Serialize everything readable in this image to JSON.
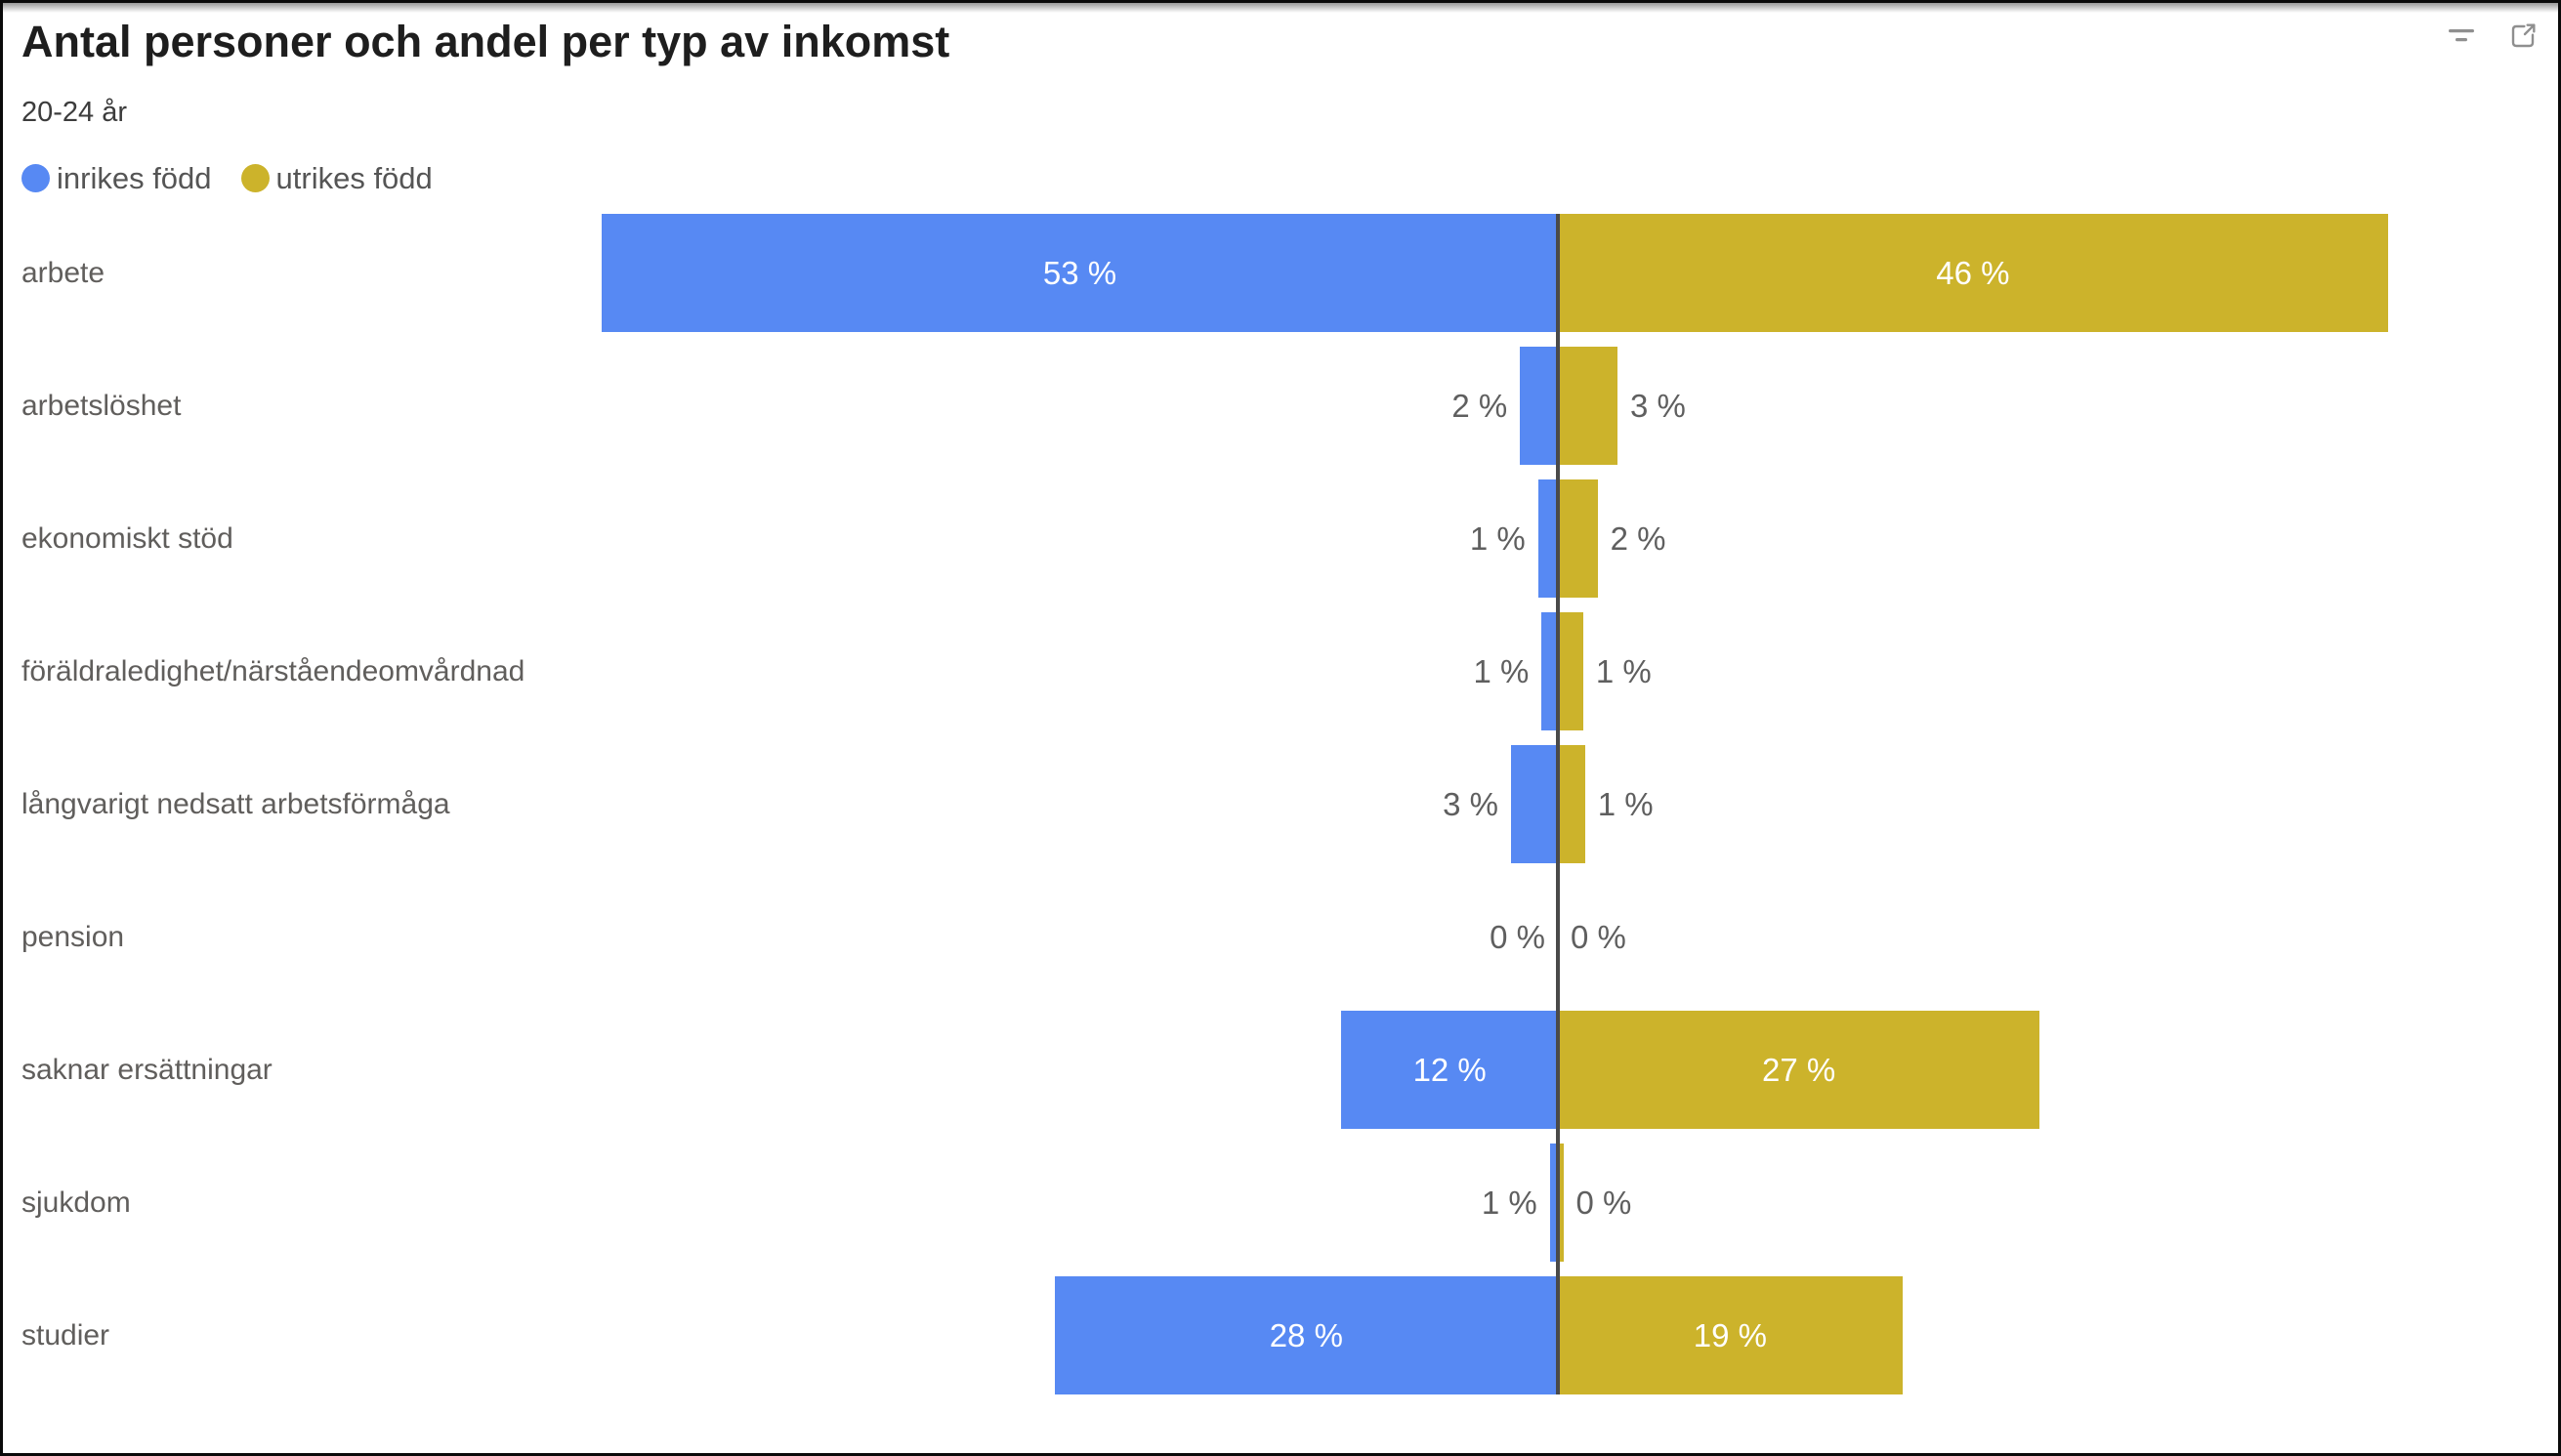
{
  "header": {
    "title": "Antal personer och andel per typ av inkomst",
    "subtitle": "20-24 år",
    "toolbar": {
      "filter_icon": "filter-lines-icon",
      "focus_icon": "focus-mode-expand-icon"
    }
  },
  "legend": {
    "position": "top-left",
    "items": [
      {
        "label": "inrikes född",
        "color": "#5789f3"
      },
      {
        "label": "utrikes född",
        "color": "#ccb32b"
      }
    ]
  },
  "chart_data": {
    "type": "bar",
    "variant": "diverging-tornado-horizontal",
    "title": "Antal personer och andel per typ av inkomst",
    "subtitle": "20-24 år",
    "categories": [
      "arbete",
      "arbetslöshet",
      "ekonomiskt stöd",
      "föräldraledighet/närståendeomvårdnad",
      "långvarigt nedsatt arbetsförmåga",
      "pension",
      "saknar ersättningar",
      "sjukdom",
      "studier"
    ],
    "series": [
      {
        "name": "inrikes född",
        "side": "left",
        "color": "#5789f3",
        "values": [
          53,
          2,
          1,
          1,
          3,
          0,
          12,
          1,
          28
        ],
        "labels": [
          "53 %",
          "2 %",
          "1 %",
          "1 %",
          "3 %",
          "0 %",
          "12 %",
          "1 %",
          "28 %"
        ],
        "bar_widths_pct": [
          53,
          2.1,
          1.1,
          0.9,
          2.6,
          0,
          12,
          0.45,
          27.9
        ]
      },
      {
        "name": "utrikes född",
        "side": "right",
        "color": "#ccb32b",
        "values": [
          46,
          3,
          2,
          1,
          1,
          0,
          27,
          0,
          19
        ],
        "labels": [
          "46 %",
          "3 %",
          "2 %",
          "1 %",
          "1 %",
          "0 %",
          "27 %",
          "0 %",
          "19 %"
        ],
        "bar_widths_pct": [
          46,
          3.3,
          2.2,
          1.4,
          1.5,
          0,
          26.7,
          0.3,
          19.1
        ]
      }
    ],
    "axis_max": 53,
    "center_axis": {
      "visible": true,
      "color": "#4a4a4a"
    },
    "inside_label_min_value": 10,
    "value_label_color_inside": "#ffffff",
    "value_label_color_outside": "#5f5f5f",
    "grid": false,
    "legend_position": "top-left"
  },
  "colors": {
    "title": "#1e1e1e",
    "subtitle": "#3c3c3c",
    "category_label": "#605e5c",
    "legend_label": "#555555",
    "axis_line": "#4a4a4a",
    "icon": "#8f8f8f",
    "frame_border": "#0a0a0a",
    "background": "#ffffff"
  }
}
